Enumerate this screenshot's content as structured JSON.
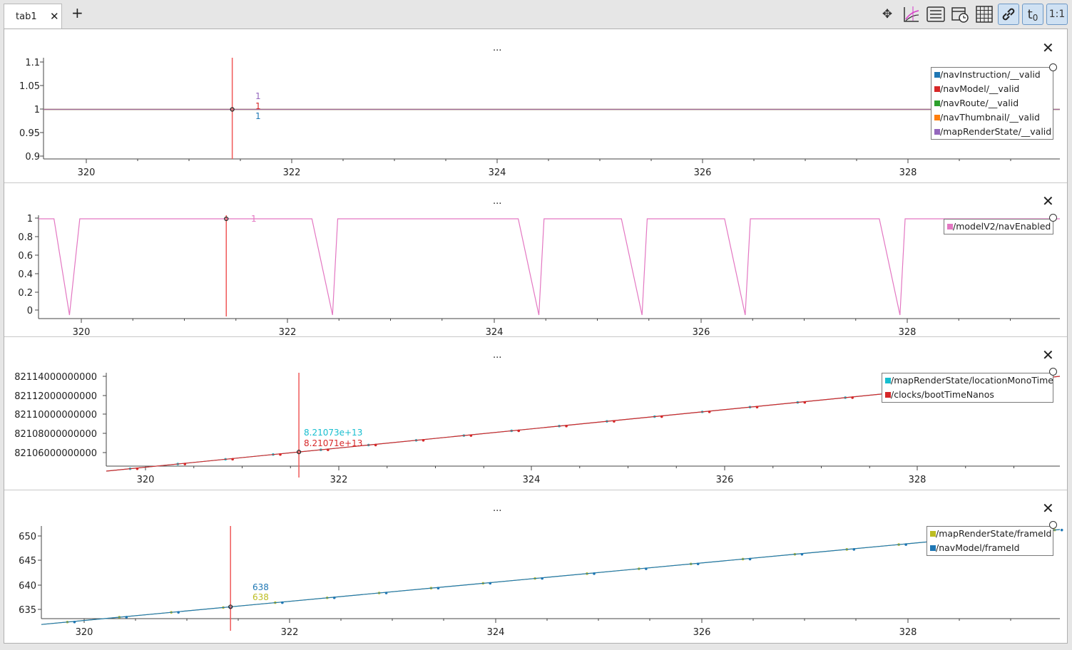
{
  "tabs": [
    {
      "label": "tab1",
      "close": "✕"
    }
  ],
  "add_tab": "+",
  "toolbar": [
    {
      "name": "pan-icon",
      "glyph": "✥"
    },
    {
      "name": "zoom-graph-icon",
      "glyph": ""
    },
    {
      "name": "list-icon",
      "glyph": "☰"
    },
    {
      "name": "calendar-clock-icon",
      "glyph": ""
    },
    {
      "name": "grid-icon",
      "glyph": ""
    },
    {
      "name": "link-icon",
      "glyph": ""
    },
    {
      "name": "t0-button",
      "glyph": "t0"
    },
    {
      "name": "ratio-button",
      "glyph": "1:1"
    }
  ],
  "panels": [
    {
      "title": "...",
      "close": "✕",
      "legend": [
        {
          "label": "/navInstruction/__valid",
          "color": "#1f77b4"
        },
        {
          "label": "/navModel/__valid",
          "color": "#d62728"
        },
        {
          "label": "/navRoute/__valid",
          "color": "#2ca02c"
        },
        {
          "label": "/navThumbnail/__valid",
          "color": "#ff7f0e"
        },
        {
          "label": "/mapRenderState/__valid",
          "color": "#9467bd"
        }
      ],
      "cursor_values": [
        {
          "text": "1",
          "color": "#9467bd"
        },
        {
          "text": "1",
          "color": "#d62728"
        },
        {
          "text": "1",
          "color": "#1f77b4"
        }
      ],
      "yticks": [
        "1.1",
        "1.05",
        "1",
        "0.95",
        "0.9"
      ],
      "xticks": [
        "320",
        "322",
        "324",
        "326",
        "328"
      ]
    },
    {
      "title": "...",
      "close": "✕",
      "legend": [
        {
          "label": "/modelV2/navEnabled",
          "color": "#e377c2"
        }
      ],
      "cursor_values": [
        {
          "text": "1",
          "color": "#e377c2"
        }
      ],
      "yticks": [
        "1",
        "0.8",
        "0.6",
        "0.4",
        "0.2",
        "0"
      ],
      "xticks": [
        "320",
        "322",
        "324",
        "326",
        "328"
      ]
    },
    {
      "title": "...",
      "close": "✕",
      "legend": [
        {
          "label": "/mapRenderState/locationMonoTime",
          "color": "#17becf"
        },
        {
          "label": "/clocks/bootTimeNanos",
          "color": "#d62728"
        }
      ],
      "cursor_values": [
        {
          "text": "8.21073e+13",
          "color": "#17becf"
        },
        {
          "text": "8.21071e+13",
          "color": "#d62728"
        }
      ],
      "yticks": [
        "82114000000000",
        "82112000000000",
        "82110000000000",
        "82108000000000",
        "82106000000000"
      ],
      "xticks": [
        "320",
        "322",
        "324",
        "326",
        "328"
      ]
    },
    {
      "title": "...",
      "close": "✕",
      "legend": [
        {
          "label": "/mapRenderState/frameId",
          "color": "#bcbd22"
        },
        {
          "label": "/navModel/frameId",
          "color": "#1f77b4"
        }
      ],
      "cursor_values": [
        {
          "text": "638",
          "color": "#1f77b4"
        },
        {
          "text": "638",
          "color": "#bcbd22"
        }
      ],
      "yticks": [
        "650",
        "645",
        "640",
        "635"
      ],
      "xticks": [
        "320",
        "322",
        "324",
        "326",
        "328"
      ]
    }
  ],
  "chart_data": [
    {
      "type": "line",
      "title": "...",
      "xlim": [
        319.6,
        329.4
      ],
      "ylim": [
        0.9,
        1.1
      ],
      "cursor_x": 321.42,
      "series": [
        {
          "name": "/navInstruction/__valid",
          "x": [
            319.6,
            329.4
          ],
          "values": [
            1,
            1
          ]
        },
        {
          "name": "/navModel/__valid",
          "x": [
            319.6,
            329.4
          ],
          "values": [
            1,
            1
          ]
        },
        {
          "name": "/navRoute/__valid",
          "x": [
            319.6,
            329.4
          ],
          "values": [
            1,
            1
          ]
        },
        {
          "name": "/navThumbnail/__valid",
          "x": [
            319.6,
            329.4
          ],
          "values": [
            1,
            1
          ]
        },
        {
          "name": "/mapRenderState/__valid",
          "x": [
            319.6,
            329.4
          ],
          "values": [
            1,
            1
          ]
        }
      ]
    },
    {
      "type": "line",
      "title": "...",
      "xlim": [
        319.6,
        329.5
      ],
      "ylim": [
        0,
        1
      ],
      "cursor_x": 321.42,
      "series": [
        {
          "name": "/modelV2/navEnabled",
          "x": [
            319.6,
            319.75,
            319.9,
            320.0,
            322.25,
            322.45,
            322.5,
            324.25,
            324.45,
            324.5,
            325.25,
            325.45,
            325.5,
            326.25,
            326.45,
            326.5,
            327.75,
            327.95,
            328.0,
            329.5
          ],
          "values": [
            1,
            1,
            0,
            1,
            1,
            0,
            1,
            1,
            0,
            1,
            1,
            0,
            1,
            1,
            0,
            1,
            1,
            0,
            1,
            1
          ]
        }
      ]
    },
    {
      "type": "line",
      "title": "...",
      "xlim": [
        319.4,
        329.4
      ],
      "ylim": [
        82105000000000,
        82115000000000
      ],
      "cursor_x": 321.42,
      "series": [
        {
          "name": "/mapRenderState/locationMonoTime",
          "x": [
            319.4,
            329.4
          ],
          "values": [
            82105500000000,
            82115000000000
          ]
        },
        {
          "name": "/clocks/bootTimeNanos",
          "x": [
            319.4,
            329.4
          ],
          "values": [
            82105500000000,
            82115000000000
          ]
        }
      ]
    },
    {
      "type": "line",
      "title": "...",
      "xlim": [
        319.6,
        329.4
      ],
      "ylim": [
        633.5,
        654
      ],
      "cursor_x": 321.42,
      "series": [
        {
          "name": "/mapRenderState/frameId",
          "x": [
            319.6,
            329.4
          ],
          "values": [
            634.5,
            654
          ]
        },
        {
          "name": "/navModel/frameId",
          "x": [
            319.6,
            329.4
          ],
          "values": [
            634.5,
            654
          ]
        }
      ]
    }
  ]
}
